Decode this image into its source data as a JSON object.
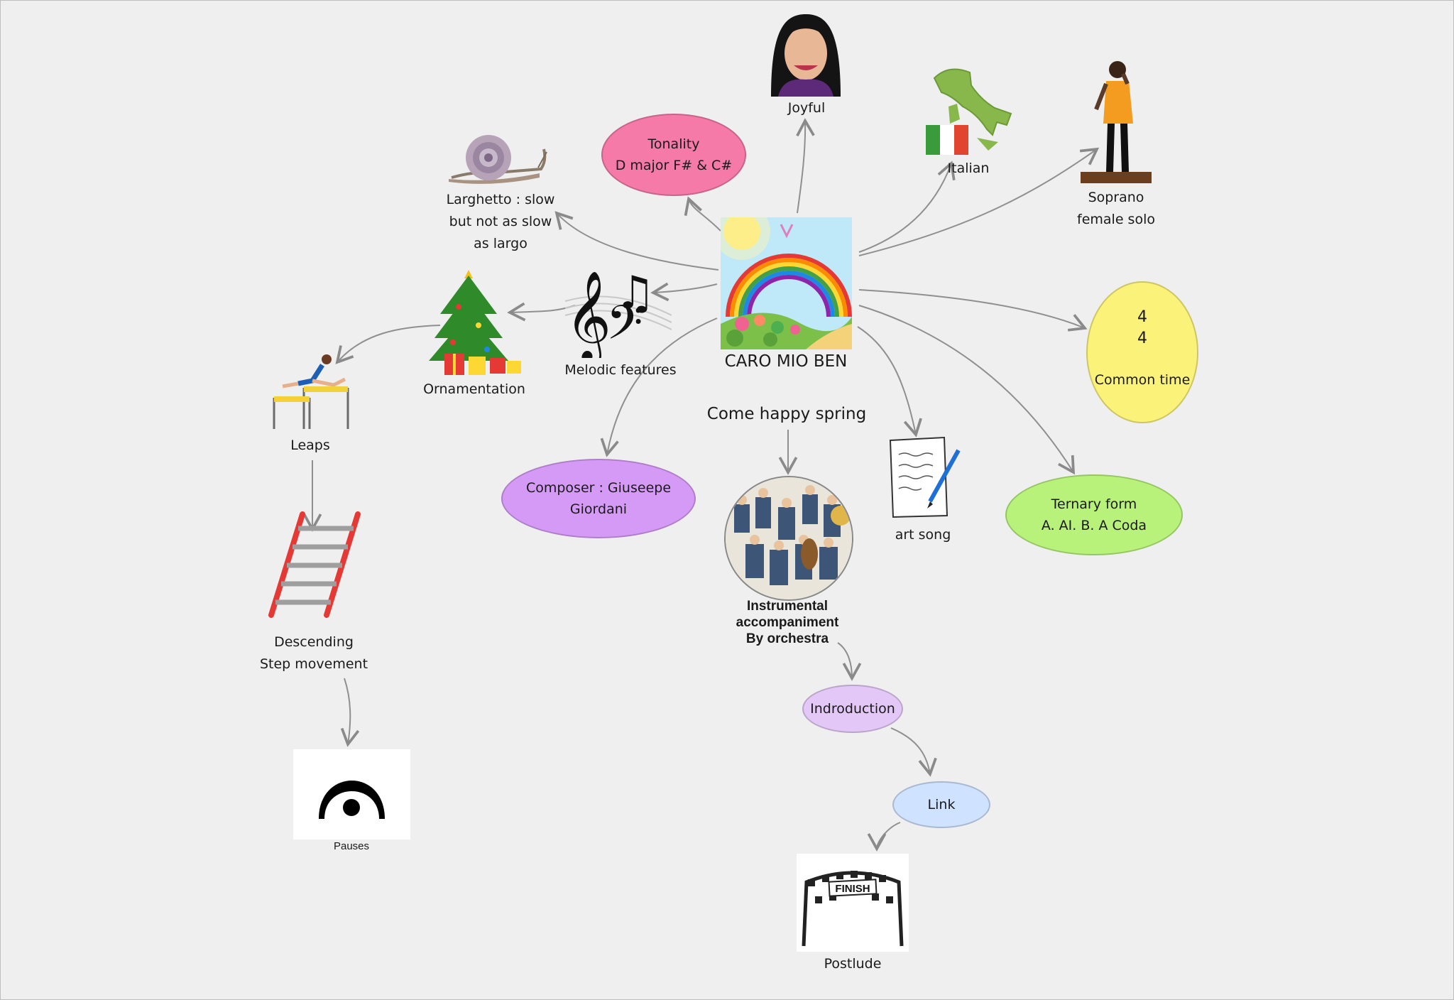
{
  "center": {
    "title": "CARO MIO BEN",
    "subtitle": "Come happy spring"
  },
  "nodes": {
    "tonality": {
      "text": "Tonality\nD major F# & C#",
      "color": "#f57aa8"
    },
    "joyful": {
      "text": "Joyful"
    },
    "italian": {
      "text": "Italian"
    },
    "soprano": {
      "text": "Soprano\nfemale solo"
    },
    "larghetto": {
      "text": "Larghetto : slow\nbut not as slow\nas largo"
    },
    "melodic": {
      "text": "Melodic features"
    },
    "ornamentation": {
      "text": "Ornamentation"
    },
    "leaps": {
      "text": "Leaps"
    },
    "descending": {
      "text": "Descending\nStep movement"
    },
    "pauses": {
      "text": "Pauses"
    },
    "time_sig": {
      "top": "4",
      "bottom": "4",
      "label": "Common time",
      "color": "#fbf27a"
    },
    "composer": {
      "text": "Composer : Giuseepe\nGiordani",
      "color": "#d59af5"
    },
    "art_song": {
      "text": "art song"
    },
    "ternary": {
      "text": "Ternary form\nA.  AI.  B.  A  Coda",
      "color": "#b8f27a"
    },
    "instrumental": {
      "text": "Instrumental\naccompaniment\nBy orchestra"
    },
    "introduction": {
      "text": "Indroduction",
      "color": "#e3c8f7"
    },
    "link": {
      "text": "Link",
      "color": "#cfe2ff"
    },
    "postlude": {
      "text": "Postlude"
    },
    "finish_banner": {
      "text": "FINISH"
    }
  }
}
